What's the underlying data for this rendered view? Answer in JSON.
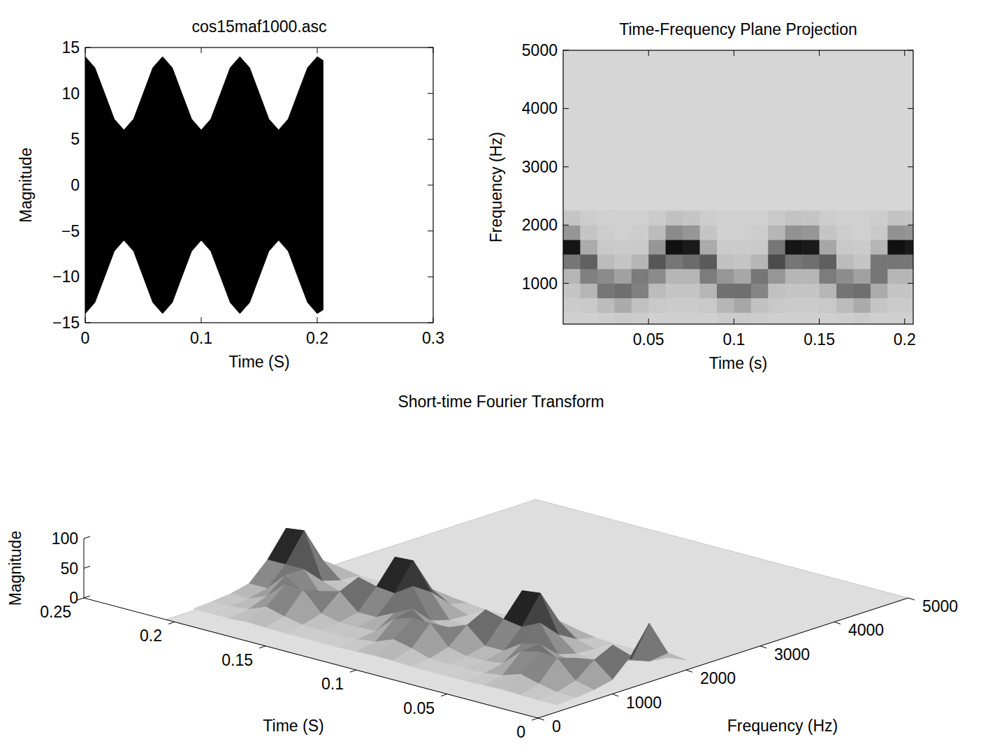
{
  "chart_data": [
    {
      "type": "area",
      "title": "cos15maf1000.asc",
      "x_label": "Time (S)",
      "y_label": "Magnitude",
      "x": [
        0,
        0.0083,
        0.0167,
        0.025,
        0.0333,
        0.0417,
        0.05,
        0.0583,
        0.0667,
        0.075,
        0.0833,
        0.0917,
        0.1,
        0.1083,
        0.1167,
        0.125,
        0.1333,
        0.1417,
        0.15,
        0.1583,
        0.1667,
        0.175,
        0.1833,
        0.1917,
        0.2,
        0.205
      ],
      "series": [
        {
          "color": "#000000",
          "values": [
            14,
            12.8,
            10,
            7.2,
            6,
            7.2,
            10,
            12.8,
            14,
            12.8,
            10,
            7.2,
            6,
            7.2,
            10,
            12.8,
            14,
            12.8,
            10,
            7.2,
            6,
            7.2,
            10,
            12.8,
            14,
            13.6
          ]
        },
        {
          "color": "#000000",
          "values": [
            -14,
            -12.8,
            -10,
            -7.2,
            -6,
            -7.2,
            -10,
            -12.8,
            -14,
            -12.8,
            -10,
            -7.2,
            -6,
            -7.2,
            -10,
            -12.8,
            -14,
            -12.8,
            -10,
            -7.2,
            -6,
            -7.2,
            -10,
            -12.8,
            -14,
            -13.6
          ]
        }
      ],
      "xlim": [
        0,
        0.3
      ],
      "xticks": [
        0,
        0.1,
        0.2,
        0.3
      ],
      "ylim": [
        -15,
        15
      ],
      "yticks": [
        {
          "value": -15,
          "label": "−15"
        },
        {
          "value": -10,
          "label": "−10"
        },
        {
          "value": -5,
          "label": "−5"
        },
        0,
        5,
        10,
        15
      ],
      "grid": false
    },
    {
      "type": "heatmap",
      "title": "Time-Frequency Plane Projection",
      "x_label": "Time (s)",
      "y_label": "Frequency (Hz)",
      "x_bins": [
        0,
        0.01,
        0.02,
        0.03,
        0.04,
        0.05,
        0.06,
        0.07,
        0.08,
        0.09,
        0.1,
        0.11,
        0.12,
        0.13,
        0.14,
        0.15,
        0.16,
        0.17,
        0.18,
        0.19,
        0.2,
        0.21
      ],
      "y_bins": [
        250,
        500,
        750,
        1000,
        1250,
        1500,
        1750,
        2000,
        2250
      ],
      "cells": [
        [
          3,
          5,
          8,
          15,
          45,
          90,
          30,
          8
        ],
        [
          3,
          6,
          15,
          40,
          55,
          20,
          8,
          4
        ],
        [
          4,
          12,
          45,
          35,
          12,
          6,
          4,
          3
        ],
        [
          5,
          20,
          48,
          25,
          8,
          5,
          3,
          3
        ],
        [
          4,
          10,
          40,
          42,
          15,
          6,
          4,
          3
        ],
        [
          3,
          6,
          12,
          35,
          60,
          30,
          12,
          5
        ],
        [
          3,
          5,
          8,
          15,
          45,
          92,
          35,
          10
        ],
        [
          3,
          5,
          8,
          15,
          50,
          88,
          30,
          8
        ],
        [
          3,
          6,
          15,
          42,
          58,
          20,
          8,
          4
        ],
        [
          5,
          15,
          47,
          30,
          10,
          5,
          3,
          3
        ],
        [
          5,
          22,
          48,
          22,
          8,
          5,
          3,
          3
        ],
        [
          4,
          10,
          38,
          45,
          15,
          6,
          4,
          3
        ],
        [
          3,
          6,
          10,
          30,
          65,
          45,
          15,
          6
        ],
        [
          3,
          5,
          8,
          15,
          45,
          90,
          32,
          9
        ],
        [
          3,
          5,
          8,
          15,
          48,
          88,
          30,
          8
        ],
        [
          3,
          6,
          15,
          42,
          56,
          22,
          8,
          4
        ],
        [
          4,
          12,
          46,
          34,
          12,
          6,
          4,
          3
        ],
        [
          5,
          20,
          48,
          25,
          8,
          5,
          3,
          3
        ],
        [
          3,
          8,
          20,
          45,
          45,
          15,
          6,
          4
        ],
        [
          3,
          5,
          8,
          15,
          45,
          92,
          32,
          9
        ],
        [
          3,
          5,
          8,
          15,
          45,
          88,
          30,
          8
        ]
      ],
      "zlim": [
        0,
        100
      ],
      "xlim": [
        0,
        0.205
      ],
      "xticks": [
        0.05,
        0.1,
        0.15,
        0.2
      ],
      "ylim": [
        300,
        5000
      ],
      "yticks": [
        1000,
        2000,
        3000,
        4000,
        5000
      ],
      "grid": false
    },
    {
      "type": "surface",
      "title": "Short-time Fourier Transform",
      "x_label": "Time (S)",
      "y_label": "Frequency (Hz)",
      "z_label": "Magnitude",
      "x": [
        0.005,
        0.015,
        0.025,
        0.035,
        0.045,
        0.055,
        0.065,
        0.075,
        0.085,
        0.095,
        0.105,
        0.115,
        0.125,
        0.135,
        0.145,
        0.155,
        0.165,
        0.175,
        0.185,
        0.195,
        0.205
      ],
      "y": [
        375,
        625,
        875,
        1125,
        1375,
        1625,
        1875,
        2125
      ],
      "z": [
        [
          3,
          5,
          8,
          15,
          45,
          90,
          30,
          8
        ],
        [
          3,
          6,
          15,
          40,
          55,
          20,
          8,
          4
        ],
        [
          4,
          12,
          45,
          35,
          12,
          6,
          4,
          3
        ],
        [
          5,
          20,
          48,
          25,
          8,
          5,
          3,
          3
        ],
        [
          4,
          10,
          40,
          42,
          15,
          6,
          4,
          3
        ],
        [
          3,
          6,
          12,
          35,
          60,
          30,
          12,
          5
        ],
        [
          3,
          5,
          8,
          15,
          45,
          92,
          35,
          10
        ],
        [
          3,
          5,
          8,
          15,
          50,
          88,
          30,
          8
        ],
        [
          3,
          6,
          15,
          42,
          58,
          20,
          8,
          4
        ],
        [
          5,
          15,
          47,
          30,
          10,
          5,
          3,
          3
        ],
        [
          5,
          22,
          48,
          22,
          8,
          5,
          3,
          3
        ],
        [
          4,
          10,
          38,
          45,
          15,
          6,
          4,
          3
        ],
        [
          3,
          6,
          10,
          30,
          65,
          45,
          15,
          6
        ],
        [
          3,
          5,
          8,
          15,
          45,
          90,
          32,
          9
        ],
        [
          3,
          5,
          8,
          15,
          48,
          88,
          30,
          8
        ],
        [
          3,
          6,
          15,
          42,
          56,
          22,
          8,
          4
        ],
        [
          4,
          12,
          46,
          34,
          12,
          6,
          4,
          3
        ],
        [
          5,
          20,
          48,
          25,
          8,
          5,
          3,
          3
        ],
        [
          3,
          8,
          20,
          45,
          45,
          15,
          6,
          4
        ],
        [
          3,
          5,
          8,
          15,
          45,
          92,
          32,
          9
        ],
        [
          3,
          5,
          8,
          15,
          45,
          88,
          30,
          8
        ]
      ],
      "xlim": [
        0,
        0.25
      ],
      "xticks": [
        0,
        0.05,
        0.1,
        0.15,
        0.2,
        0.25
      ],
      "ylim": [
        0,
        5000
      ],
      "yticks": [
        0,
        1000,
        2000,
        3000,
        4000,
        5000
      ],
      "zlim": [
        0,
        100
      ],
      "zticks": [
        0,
        50,
        100
      ],
      "grid": false
    }
  ]
}
